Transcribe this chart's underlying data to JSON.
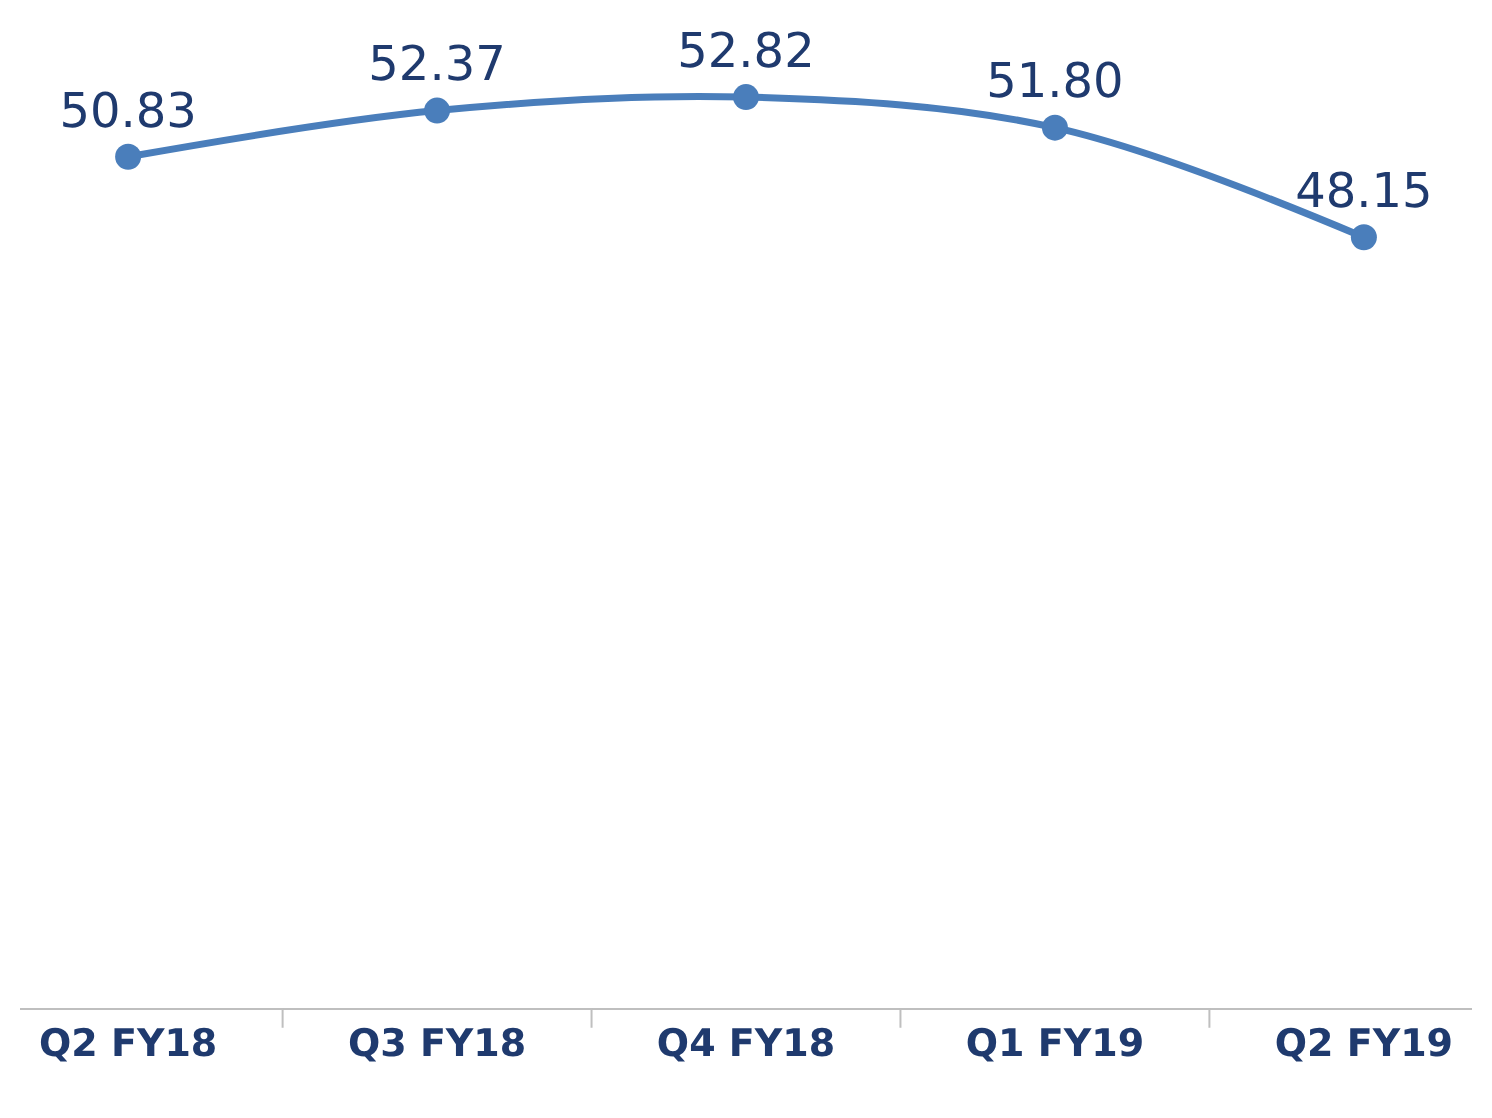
{
  "chart_data": {
    "type": "line",
    "categories": [
      "Q2 FY18",
      "Q3 FY18",
      "Q4 FY18",
      "Q1 FY19",
      "Q2 FY19"
    ],
    "series": [
      {
        "color": "#4a7ebb",
        "values": [
          50.83,
          52.37,
          52.82,
          51.8,
          48.15
        ],
        "value_labels": [
          "50.83",
          "52.37",
          "52.82",
          "51.80",
          "48.15"
        ]
      }
    ],
    "marker": "circle",
    "line_style": "solid",
    "legend": false
  }
}
